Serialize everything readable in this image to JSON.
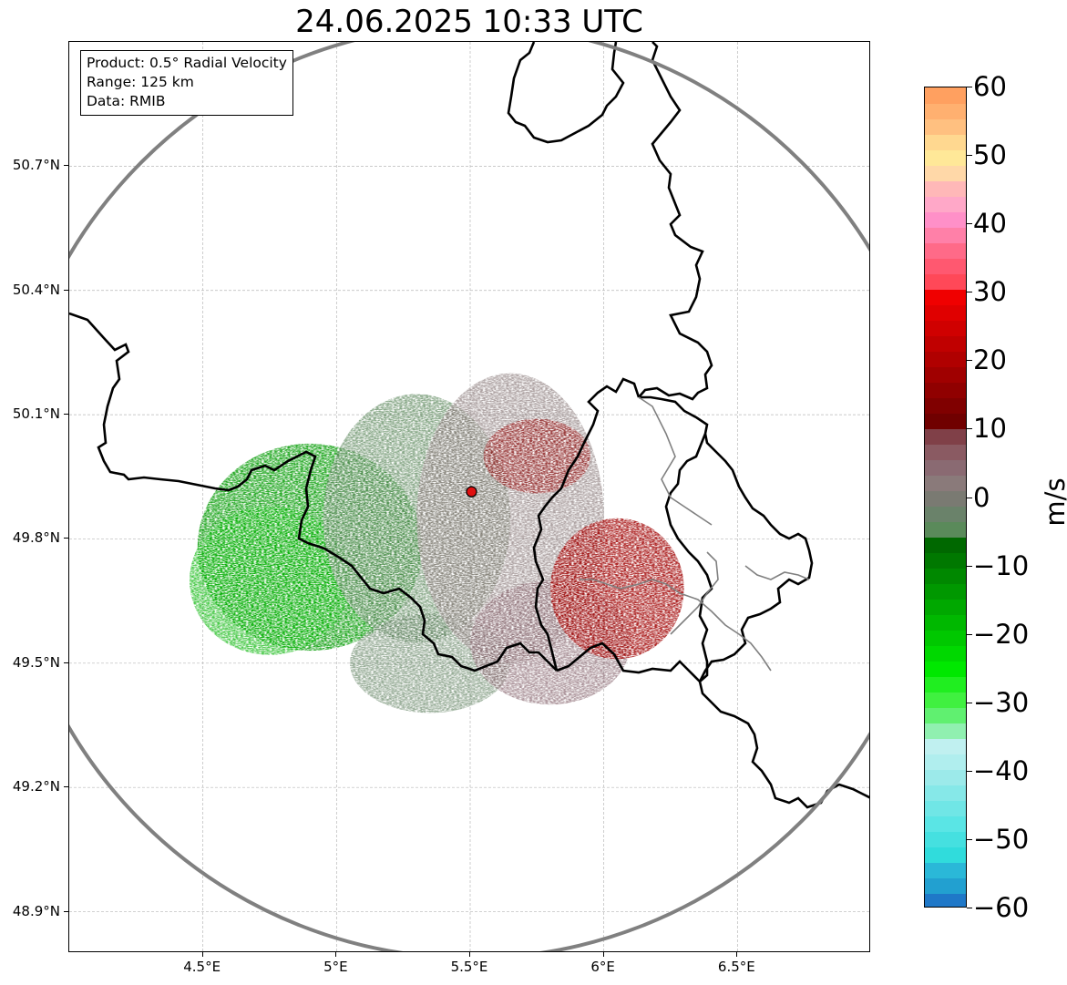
{
  "title": "24.06.2025 10:33 UTC",
  "info_box": {
    "product": "Product: 0.5° Radial Velocity",
    "range": "Range: 125 km",
    "data": "Data: RMIB"
  },
  "map": {
    "lon_range": [
      4.0,
      7.0
    ],
    "lat_range": [
      48.8,
      51.0
    ],
    "lat_ticks": [
      {
        "value": 50.7,
        "label": "50.7°N"
      },
      {
        "value": 50.4,
        "label": "50.4°N"
      },
      {
        "value": 50.1,
        "label": "50.1°N"
      },
      {
        "value": 49.8,
        "label": "49.8°N"
      },
      {
        "value": 49.5,
        "label": "49.5°N"
      },
      {
        "value": 49.2,
        "label": "49.2°N"
      },
      {
        "value": 48.9,
        "label": "48.9°N"
      }
    ],
    "lon_ticks": [
      {
        "value": 4.5,
        "label": "4.5°E"
      },
      {
        "value": 5.0,
        "label": "5°E"
      },
      {
        "value": 5.5,
        "label": "5.5°E"
      },
      {
        "value": 6.0,
        "label": "6°E"
      },
      {
        "value": 6.5,
        "label": "6.5°E"
      }
    ],
    "radar_site": {
      "lon": 5.505,
      "lat": 49.914
    },
    "range_km": 125,
    "gridlines": true,
    "borders_color": "#000000",
    "subborders_color": "#808080",
    "range_ring_color": "#808080",
    "site_color": "#e01010"
  },
  "colorbar": {
    "unit": "m/s",
    "min": -60,
    "max": 60,
    "tick_labels": [
      "60",
      "50",
      "40",
      "30",
      "20",
      "10",
      "0",
      "−10",
      "−20",
      "−30",
      "−40",
      "−50",
      "−60"
    ],
    "tick_values": [
      60,
      50,
      40,
      30,
      20,
      10,
      0,
      -10,
      -20,
      -30,
      -40,
      -50,
      -60
    ],
    "colors_low_to_high": [
      "#1f78c8",
      "#22a0d0",
      "#2ab8d8",
      "#30dcdc",
      "#45e0e0",
      "#5ae5e5",
      "#70e6e6",
      "#86e8e8",
      "#9ceaea",
      "#b0eeee",
      "#c0f0f0",
      "#90f0b0",
      "#60f070",
      "#40f040",
      "#20ee20",
      "#00e800",
      "#00d800",
      "#00c800",
      "#00b800",
      "#00a800",
      "#009800",
      "#008800",
      "#007800",
      "#006800",
      "#5a8a5a",
      "#6a826a",
      "#7a7a72",
      "#8a7a7a",
      "#8a6a72",
      "#8a5a62",
      "#804048",
      "#700000",
      "#800000",
      "#900000",
      "#a00000",
      "#b00000",
      "#c00000",
      "#d00000",
      "#e00000",
      "#f00000",
      "#ff4858",
      "#ff5870",
      "#ff6a88",
      "#ff80a8",
      "#ff90c8",
      "#ffa8c8",
      "#ffb8b8",
      "#ffd8a8",
      "#ffe898",
      "#ffd890",
      "#ffc080",
      "#ffb070",
      "#ffa060"
    ]
  },
  "velocity_regions": [
    {
      "kind": "inbound-strong",
      "color": "#009a00",
      "lon": 4.9,
      "lat": 49.78,
      "rx_deg": 0.42,
      "ry_deg": 0.25,
      "opacity": 0.85
    },
    {
      "kind": "inbound-mid",
      "color": "#00b400",
      "lon": 4.75,
      "lat": 49.7,
      "rx_deg": 0.3,
      "ry_deg": 0.18,
      "opacity": 0.7
    },
    {
      "kind": "inbound-weak",
      "color": "#5f8a5f",
      "lon": 5.3,
      "lat": 49.85,
      "rx_deg": 0.35,
      "ry_deg": 0.3,
      "opacity": 0.75
    },
    {
      "kind": "inbound-weak-south",
      "color": "#5f7f5f",
      "lon": 5.35,
      "lat": 49.5,
      "rx_deg": 0.3,
      "ry_deg": 0.12,
      "opacity": 0.65
    },
    {
      "kind": "near-zero",
      "color": "#8a7a7a",
      "lon": 5.65,
      "lat": 49.85,
      "rx_deg": 0.35,
      "ry_deg": 0.35,
      "opacity": 0.7
    },
    {
      "kind": "outbound-weak",
      "color": "#8a6a72",
      "lon": 5.8,
      "lat": 49.55,
      "rx_deg": 0.3,
      "ry_deg": 0.15,
      "opacity": 0.7
    },
    {
      "kind": "outbound-strong",
      "color": "#a00000",
      "lon": 6.05,
      "lat": 49.68,
      "rx_deg": 0.25,
      "ry_deg": 0.17,
      "opacity": 0.85
    },
    {
      "kind": "outbound-mid-north",
      "color": "#900000",
      "lon": 5.75,
      "lat": 50.0,
      "rx_deg": 0.2,
      "ry_deg": 0.09,
      "opacity": 0.6
    }
  ]
}
